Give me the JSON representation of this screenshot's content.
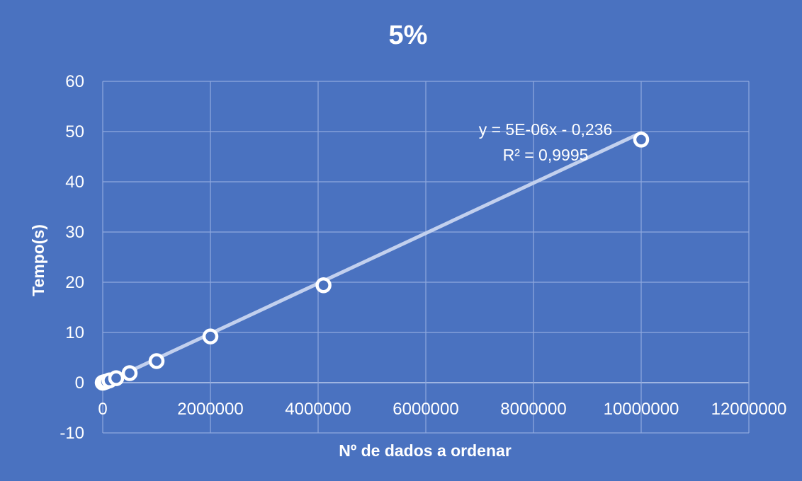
{
  "chart_data": {
    "type": "scatter",
    "title": "5%",
    "xlabel": "Nº de dados a ordenar",
    "ylabel": "Tempo(s)",
    "xlim": [
      0,
      12000000
    ],
    "ylim": [
      -10,
      60
    ],
    "x_ticks": [
      0,
      2000000,
      4000000,
      6000000,
      8000000,
      10000000,
      12000000
    ],
    "y_ticks": [
      -10,
      0,
      10,
      20,
      30,
      40,
      50,
      60
    ],
    "x_tick_labels": [
      "0",
      "2000000",
      "4000000",
      "6000000",
      "8000000",
      "10000000",
      "12000000"
    ],
    "y_tick_labels": [
      "-10",
      "0",
      "10",
      "20",
      "30",
      "40",
      "50",
      "60"
    ],
    "grid": true,
    "series": [
      {
        "x": [
          0,
          15000,
          30000,
          60000,
          125000,
          250000,
          500000,
          1000000,
          2000000,
          4100000,
          10000000
        ],
        "y": [
          0.0,
          0.05,
          0.1,
          0.2,
          0.45,
          0.9,
          1.9,
          4.3,
          9.2,
          19.4,
          48.4
        ]
      }
    ],
    "trendline": {
      "type": "linear",
      "slope": 5e-06,
      "intercept": -0.236,
      "x_range": [
        0,
        10000000
      ],
      "equation_label": "y = 5E-06x - 0,236",
      "r2_label": "R² = 0,9995"
    },
    "colors": {
      "background": "#4a72c0",
      "marker_stroke": "#ffffff",
      "marker_fill": "#4a72c0",
      "trendline": "#c2d0ee",
      "gridline": "#8fa9de"
    }
  }
}
